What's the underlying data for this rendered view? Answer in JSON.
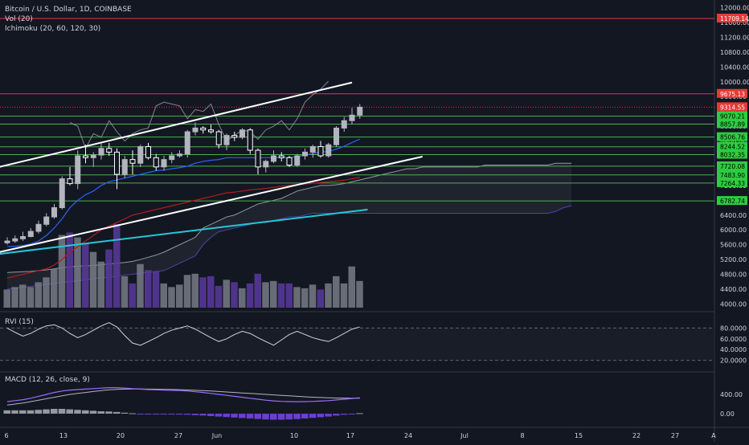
{
  "header": {
    "title": "Bitcoin / U.S. Dollar, 1D, COINBASE",
    "vol_label": "Vol (20)",
    "ichimoku_label": "Ichimoku (20, 60, 120, 30)",
    "rvi_label": "RVI (15)",
    "macd_label": "MACD (12, 26, close, 9)"
  },
  "colors": {
    "background": "#131722",
    "candle_up": "#b2b5be",
    "candle_down": "#ffffff",
    "grid": "#1e222d",
    "volume_up": "#787b86",
    "volume_down": "#5b3a9e",
    "hline_green": "#4caf50",
    "hline_red": "#e53935",
    "channel": "#ffffff",
    "trend_cyan": "#26c6da",
    "ichimoku_blue": "#2962ff",
    "ichimoku_red": "#b71c1c",
    "cloud_line": "#4a46a8",
    "macd_line": "#9b6dff",
    "signal_line": "#b2b5be"
  },
  "price_axis": {
    "ticks": [
      "12000.00",
      "11600.00",
      "11200.00",
      "10800.00",
      "10400.00",
      "10000.00",
      "9600.00",
      "9200.00",
      "8800.00",
      "8400.00",
      "8000.00",
      "7600.00",
      "7200.00",
      "6800.00",
      "6400.00",
      "6000.00",
      "5600.00",
      "5200.00",
      "4800.00",
      "4400.00",
      "4000.00"
    ],
    "tags": [
      {
        "text": "11709.14",
        "value": 11709.14,
        "type": "red"
      },
      {
        "text": "9675.13",
        "value": 9675.13,
        "type": "red"
      },
      {
        "text": "9314.55",
        "value": 9314.55,
        "type": "red-solid"
      },
      {
        "text": "9070.21",
        "value": 9070.21,
        "type": "green"
      },
      {
        "text": "8857.89",
        "value": 8857.89,
        "type": "green"
      },
      {
        "text": "8506.76",
        "value": 8506.76,
        "type": "green"
      },
      {
        "text": "8244.52",
        "value": 8244.52,
        "type": "green"
      },
      {
        "text": "8032.35",
        "value": 8032.35,
        "type": "green"
      },
      {
        "text": "7720.08",
        "value": 7720.08,
        "type": "green"
      },
      {
        "text": "7483.90",
        "value": 7483.9,
        "type": "green"
      },
      {
        "text": "7264.33",
        "value": 7264.33,
        "type": "green"
      },
      {
        "text": "6782.74",
        "value": 6782.74,
        "type": "green"
      }
    ]
  },
  "rvi_axis": {
    "ticks": [
      "80.0000",
      "60.0000",
      "40.0000",
      "20.0000"
    ],
    "upper": 80,
    "lower": 20
  },
  "macd_axis": {
    "ticks": [
      "400.00",
      "0.00"
    ]
  },
  "time_axis": {
    "ticks": [
      "6",
      "13",
      "20",
      "27",
      "Jun",
      "10",
      "17",
      "24",
      "Jul",
      "8",
      "15",
      "22",
      "27",
      "A"
    ]
  },
  "chart_data": {
    "type": "candlestick",
    "ylim": [
      3900,
      12100
    ],
    "candles": [
      {
        "o": 5650,
        "h": 5800,
        "l": 5600,
        "c": 5700
      },
      {
        "o": 5700,
        "h": 5850,
        "l": 5650,
        "c": 5760
      },
      {
        "o": 5760,
        "h": 5950,
        "l": 5700,
        "c": 5820
      },
      {
        "o": 5820,
        "h": 6050,
        "l": 5800,
        "c": 5960
      },
      {
        "o": 5960,
        "h": 6250,
        "l": 5900,
        "c": 6150
      },
      {
        "o": 6150,
        "h": 6450,
        "l": 6100,
        "c": 6350
      },
      {
        "o": 6350,
        "h": 6700,
        "l": 6300,
        "c": 6600
      },
      {
        "o": 6600,
        "h": 7450,
        "l": 6550,
        "c": 7380
      },
      {
        "o": 7380,
        "h": 7700,
        "l": 7200,
        "c": 7250
      },
      {
        "o": 7250,
        "h": 8150,
        "l": 7100,
        "c": 8000
      },
      {
        "o": 8000,
        "h": 8300,
        "l": 7800,
        "c": 7950
      },
      {
        "o": 7950,
        "h": 8100,
        "l": 7700,
        "c": 8020
      },
      {
        "o": 8020,
        "h": 8350,
        "l": 7900,
        "c": 8200
      },
      {
        "o": 8200,
        "h": 8350,
        "l": 8000,
        "c": 8100
      },
      {
        "o": 8100,
        "h": 8200,
        "l": 7100,
        "c": 7500
      },
      {
        "o": 7500,
        "h": 8000,
        "l": 7400,
        "c": 7900
      },
      {
        "o": 7900,
        "h": 8150,
        "l": 7500,
        "c": 7800
      },
      {
        "o": 7800,
        "h": 8300,
        "l": 7700,
        "c": 8250
      },
      {
        "o": 8250,
        "h": 8350,
        "l": 7900,
        "c": 7950
      },
      {
        "o": 7950,
        "h": 8050,
        "l": 7600,
        "c": 7700
      },
      {
        "o": 7700,
        "h": 8000,
        "l": 7600,
        "c": 7900
      },
      {
        "o": 7900,
        "h": 8100,
        "l": 7800,
        "c": 8000
      },
      {
        "o": 8000,
        "h": 8150,
        "l": 7950,
        "c": 8050
      },
      {
        "o": 8050,
        "h": 8700,
        "l": 7950,
        "c": 8650
      },
      {
        "o": 8650,
        "h": 8900,
        "l": 8550,
        "c": 8750
      },
      {
        "o": 8750,
        "h": 8800,
        "l": 8600,
        "c": 8700
      },
      {
        "o": 8700,
        "h": 8850,
        "l": 8600,
        "c": 8650
      },
      {
        "o": 8650,
        "h": 8700,
        "l": 8200,
        "c": 8300
      },
      {
        "o": 8300,
        "h": 8600,
        "l": 8150,
        "c": 8550
      },
      {
        "o": 8550,
        "h": 8650,
        "l": 8400,
        "c": 8500
      },
      {
        "o": 8500,
        "h": 8750,
        "l": 8450,
        "c": 8700
      },
      {
        "o": 8700,
        "h": 8750,
        "l": 8050,
        "c": 8150
      },
      {
        "o": 8150,
        "h": 8200,
        "l": 7500,
        "c": 7700
      },
      {
        "o": 7700,
        "h": 7900,
        "l": 7550,
        "c": 7850
      },
      {
        "o": 7850,
        "h": 8150,
        "l": 7800,
        "c": 8000
      },
      {
        "o": 8000,
        "h": 8100,
        "l": 7850,
        "c": 7950
      },
      {
        "o": 7950,
        "h": 8000,
        "l": 7700,
        "c": 7750
      },
      {
        "o": 7750,
        "h": 8050,
        "l": 7700,
        "c": 8000
      },
      {
        "o": 8000,
        "h": 8200,
        "l": 7900,
        "c": 8100
      },
      {
        "o": 8100,
        "h": 8300,
        "l": 7950,
        "c": 8250
      },
      {
        "o": 8250,
        "h": 8400,
        "l": 7950,
        "c": 8000
      },
      {
        "o": 8000,
        "h": 8350,
        "l": 7950,
        "c": 8300
      },
      {
        "o": 8300,
        "h": 8800,
        "l": 8250,
        "c": 8750
      },
      {
        "o": 8750,
        "h": 9050,
        "l": 8650,
        "c": 8950
      },
      {
        "o": 8950,
        "h": 9300,
        "l": 8850,
        "c": 9100
      },
      {
        "o": 9100,
        "h": 9400,
        "l": 9000,
        "c": 9314
      }
    ],
    "volume_scale_max": 6500,
    "volumes": [
      1500,
      1700,
      1900,
      1700,
      2100,
      2500,
      3200,
      6000,
      6200,
      5800,
      5300,
      4600,
      3800,
      4800,
      6900,
      2600,
      2000,
      3600,
      3100,
      3000,
      2000,
      1700,
      1900,
      2700,
      2800,
      2500,
      2600,
      1800,
      2300,
      2100,
      1600,
      2000,
      2800,
      2100,
      2200,
      2000,
      2000,
      1700,
      1600,
      1900,
      1500,
      2000,
      2600,
      2000,
      3400,
      2200
    ],
    "volume_up": [
      true,
      true,
      true,
      true,
      true,
      true,
      true,
      true,
      false,
      true,
      false,
      true,
      true,
      false,
      false,
      true,
      false,
      true,
      false,
      false,
      true,
      true,
      true,
      true,
      true,
      false,
      false,
      false,
      true,
      false,
      true,
      false,
      false,
      true,
      true,
      false,
      false,
      true,
      true,
      true,
      false,
      true,
      true,
      true,
      true,
      true
    ],
    "tenkan": [
      5550,
      5560,
      5580,
      5620,
      5700,
      5850,
      6050,
      6300,
      6600,
      6800,
      6950,
      7050,
      7200,
      7300,
      7350,
      7400,
      7450,
      7500,
      7550,
      7600,
      7620,
      7650,
      7680,
      7720,
      7800,
      7850,
      7880,
      7900,
      7950,
      7950,
      7950,
      7950,
      7950,
      7950,
      7950,
      7950,
      7950,
      7980,
      8020,
      8060,
      8100,
      8120,
      8180,
      8260,
      8360,
      8450
    ],
    "kijun": [
      4700,
      4750,
      4800,
      4850,
      4900,
      4950,
      5050,
      5200,
      5400,
      5550,
      5700,
      5850,
      6000,
      6100,
      6200,
      6300,
      6400,
      6450,
      6500,
      6550,
      6600,
      6650,
      6700,
      6750,
      6800,
      6850,
      6900,
      6950,
      7000,
      7020,
      7050,
      7080,
      7100,
      7120,
      7150,
      7180,
      7200,
      7220,
      7240,
      7260,
      7280,
      7300,
      7320,
      7340,
      7380,
      7420
    ],
    "cloud_top": [
      4850,
      4860,
      4870,
      4880,
      4900,
      4920,
      4950,
      4980,
      5000,
      5020,
      5030,
      5040,
      5060,
      5080,
      5100,
      5120,
      5150,
      5200,
      5260,
      5320,
      5400,
      5500,
      5600,
      5700,
      5800,
      6050,
      6150,
      6250,
      6350,
      6400,
      6500,
      6600,
      6700,
      6750,
      6800,
      6850,
      6950,
      7050,
      7100,
      7150,
      7200,
      7200,
      7220,
      7250,
      7300,
      7350,
      7400,
      7450,
      7500,
      7550,
      7600,
      7650,
      7650,
      7700,
      7700,
      7700,
      7700,
      7700,
      7700,
      7700,
      7700,
      7750,
      7750,
      7750,
      7750,
      7750,
      7750,
      7750,
      7750,
      7750,
      7800,
      7800,
      7800
    ],
    "cloud_bot": [
      4400,
      4420,
      4450,
      4470,
      4500,
      4520,
      4550,
      4580,
      4600,
      4620,
      4650,
      4680,
      4700,
      4720,
      4750,
      4780,
      4800,
      4830,
      4850,
      4880,
      4900,
      5000,
      5100,
      5200,
      5300,
      5600,
      5800,
      5950,
      6000,
      6050,
      6100,
      6150,
      6200,
      6200,
      6250,
      6300,
      6350,
      6350,
      6400,
      6450,
      6450,
      6450,
      6450,
      6450,
      6450,
      6450,
      6450,
      6450,
      6450,
      6450,
      6450,
      6450,
      6450,
      6450,
      6450,
      6450,
      6450,
      6450,
      6450,
      6450,
      6450,
      6450,
      6450,
      6450,
      6450,
      6450,
      6450,
      6450,
      6450,
      6450,
      6500,
      6600,
      6650
    ],
    "hlines": [
      {
        "value": 11709.14,
        "color": "red"
      },
      {
        "value": 9675.13,
        "color": "red"
      },
      {
        "value": 9314.55,
        "color": "red-dotted"
      },
      {
        "value": 9070.21,
        "color": "green"
      },
      {
        "value": 8857.89,
        "color": "green"
      },
      {
        "value": 8506.76,
        "color": "green"
      },
      {
        "value": 8244.52,
        "color": "green"
      },
      {
        "value": 8032.35,
        "color": "green"
      },
      {
        "value": 7720.08,
        "color": "green"
      },
      {
        "value": 7483.9,
        "color": "green"
      },
      {
        "value": 7264.33,
        "color": "green"
      },
      {
        "value": 6782.74,
        "color": "green"
      }
    ],
    "channel_upper": [
      [
        -1,
        7700
      ],
      [
        44,
        9980
      ]
    ],
    "channel_lower": [
      [
        -1,
        5400
      ],
      [
        53,
        7980
      ]
    ],
    "trend_cyan": [
      [
        -1,
        5350
      ],
      [
        46,
        6550
      ]
    ],
    "rvi": [
      80,
      72,
      65,
      70,
      78,
      84,
      86,
      80,
      70,
      62,
      68,
      76,
      84,
      90,
      82,
      66,
      52,
      48,
      55,
      62,
      70,
      76,
      80,
      84,
      78,
      70,
      62,
      55,
      60,
      68,
      74,
      70,
      62,
      55,
      48,
      58,
      68,
      74,
      68,
      62,
      58,
      55,
      62,
      70,
      78,
      82
    ],
    "macd": [
      250,
      270,
      290,
      320,
      360,
      400,
      440,
      470,
      490,
      500,
      510,
      520,
      530,
      540,
      540,
      530,
      520,
      510,
      500,
      495,
      490,
      485,
      480,
      470,
      455,
      440,
      420,
      400,
      380,
      360,
      340,
      320,
      300,
      280,
      265,
      255,
      250,
      248,
      250,
      255,
      262,
      270,
      285,
      300,
      315,
      330
    ],
    "signal": [
      180,
      200,
      220,
      250,
      280,
      310,
      340,
      370,
      400,
      420,
      440,
      460,
      480,
      495,
      505,
      510,
      512,
      512,
      510,
      508,
      505,
      502,
      498,
      492,
      485,
      478,
      470,
      460,
      450,
      440,
      430,
      420,
      410,
      400,
      390,
      380,
      370,
      360,
      350,
      342,
      336,
      330,
      325,
      322,
      320,
      320
    ],
    "histogram": [
      70,
      70,
      70,
      70,
      80,
      90,
      100,
      100,
      90,
      80,
      70,
      60,
      50,
      45,
      35,
      20,
      8,
      -2,
      -10,
      -13,
      -15,
      -17,
      -18,
      -22,
      -30,
      -38,
      -50,
      -60,
      -70,
      -80,
      -90,
      -100,
      -110,
      -120,
      -125,
      -125,
      -120,
      -112,
      -100,
      -87,
      -74,
      -60,
      -40,
      -22,
      -5,
      10
    ]
  }
}
